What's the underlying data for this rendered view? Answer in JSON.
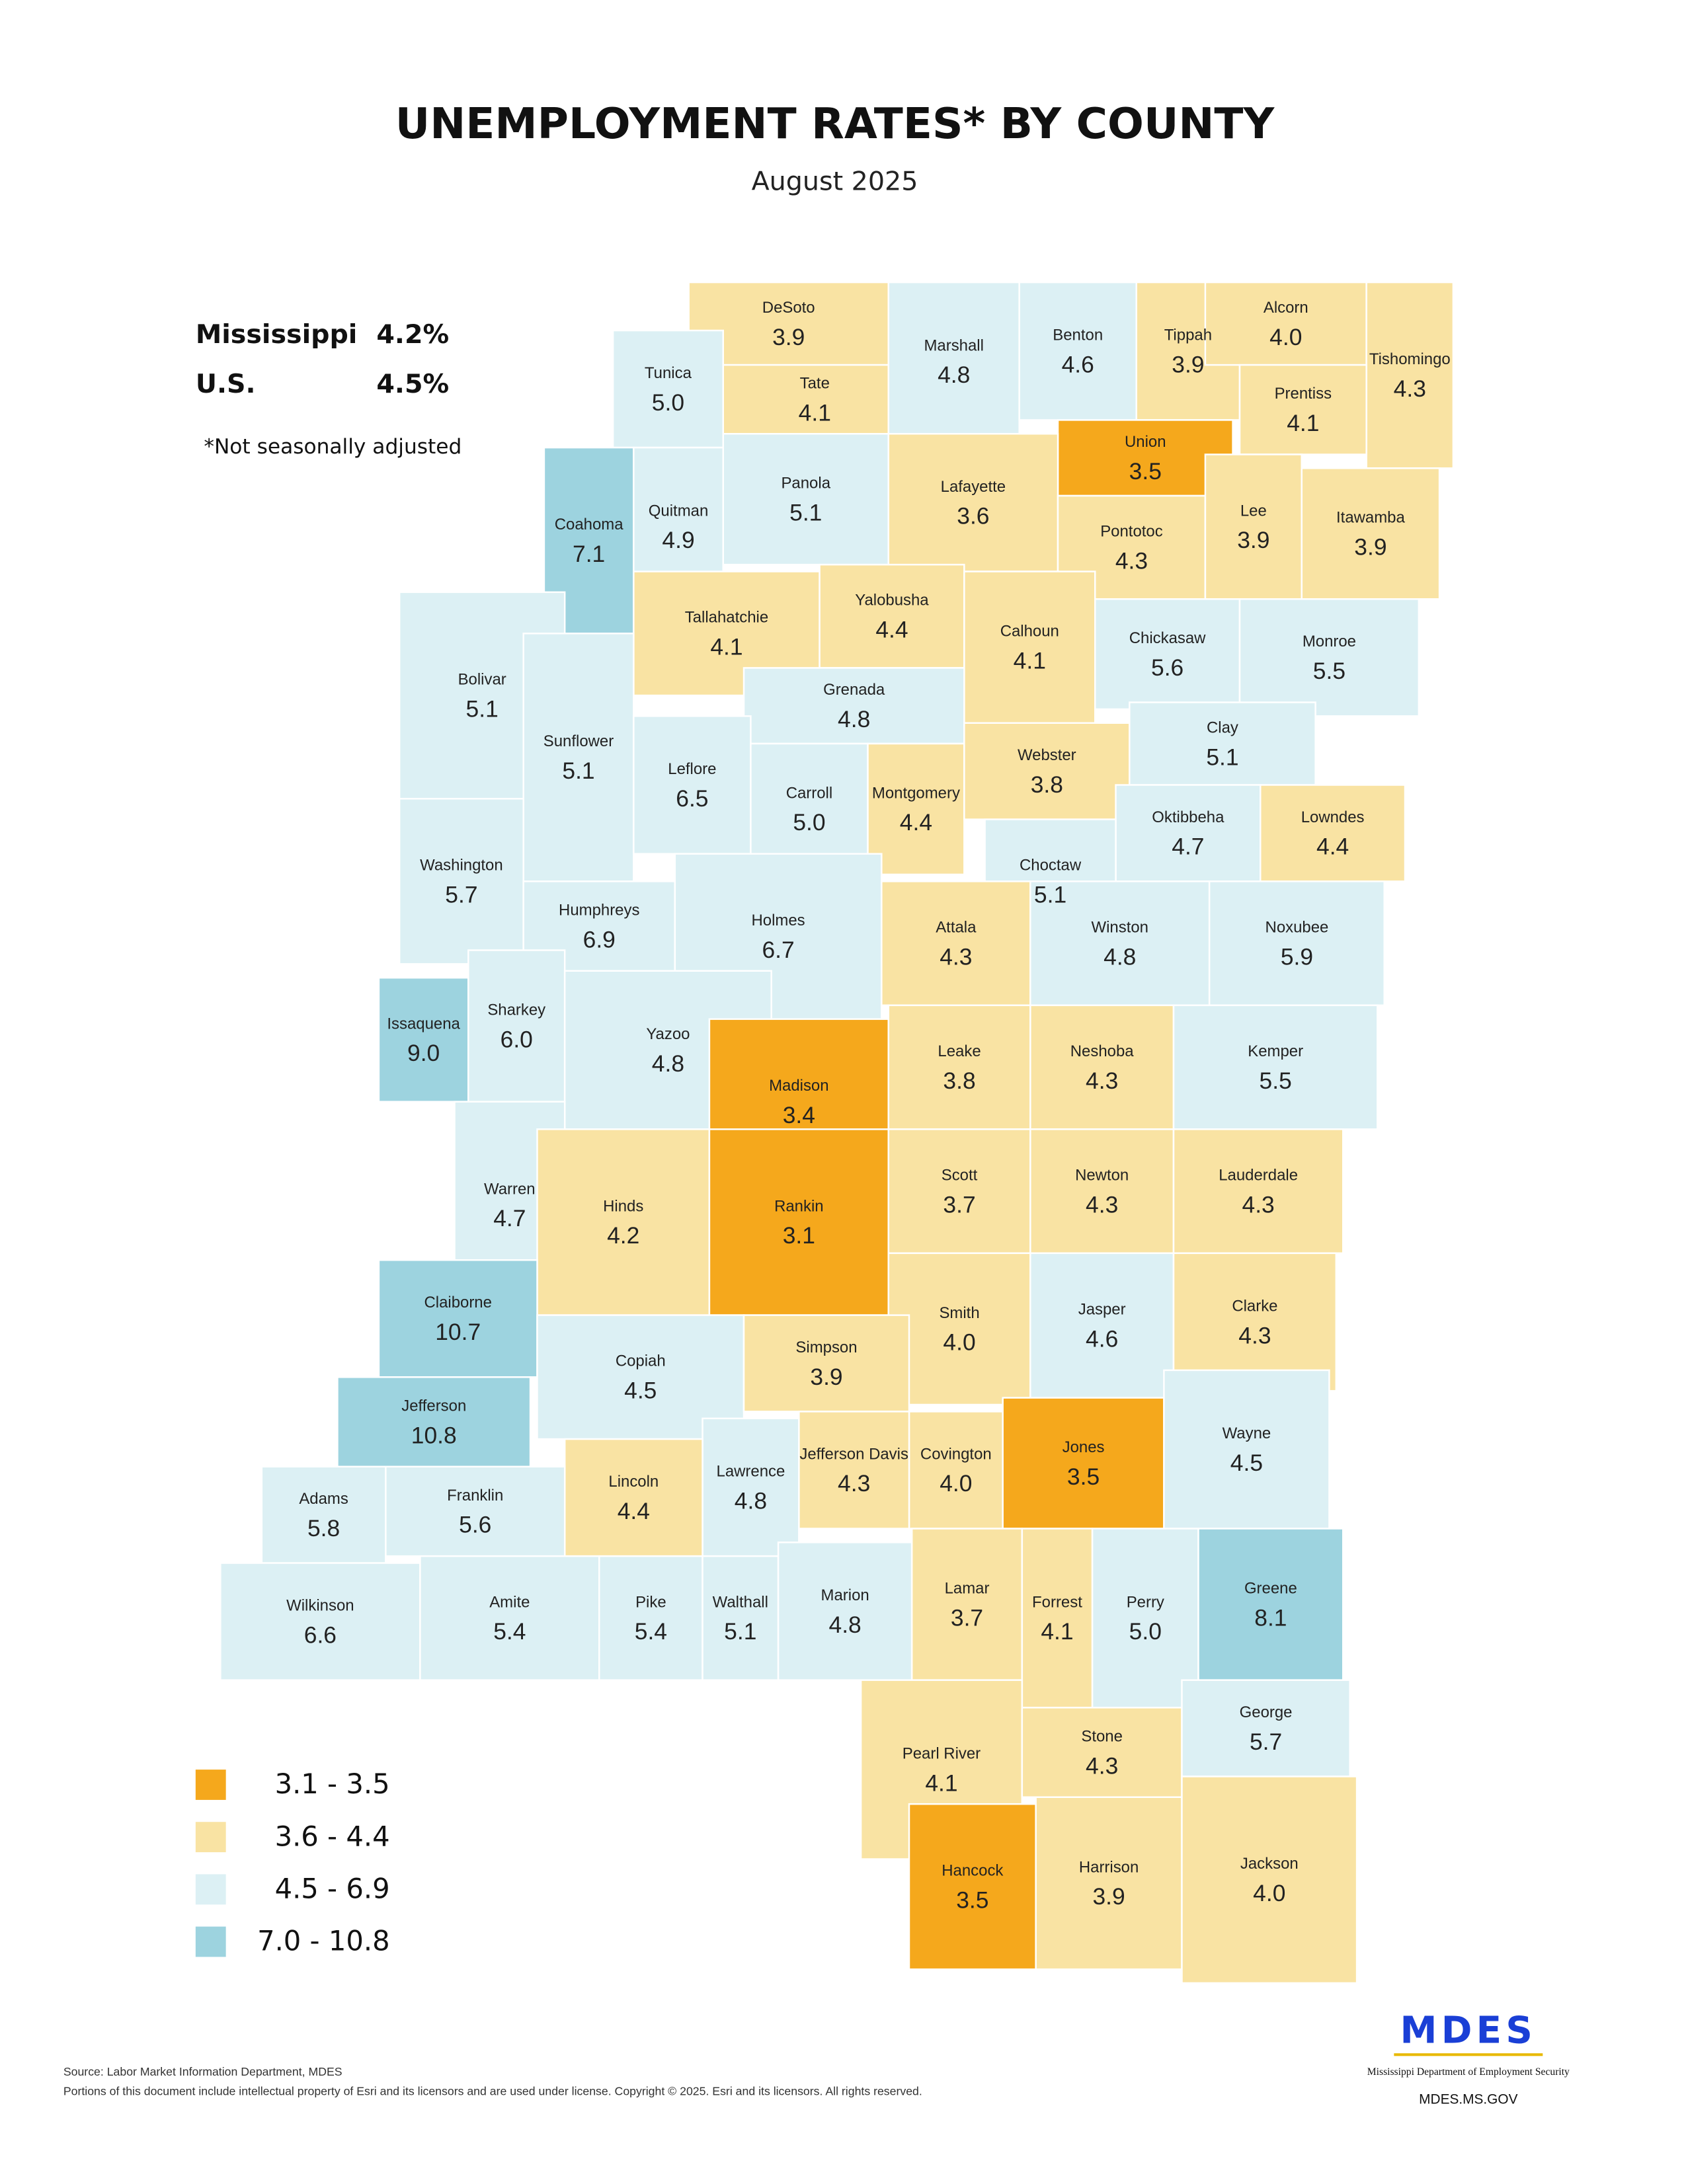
{
  "chart_data": {
    "type": "choropleth",
    "title": "UNEMPLOYMENT RATES* BY COUNTY",
    "subtitle": "August 2025",
    "state_rates": [
      {
        "name": "Mississippi",
        "rate": "4.2%"
      },
      {
        "name": "U.S.",
        "rate": "4.5%"
      }
    ],
    "note": "*Not seasonally adjusted",
    "legend": [
      {
        "label": "3.1 - 3.5",
        "color": "#f5a81c"
      },
      {
        "label": "3.6 - 4.4",
        "color": "#f9e3a3"
      },
      {
        "label": "4.5 - 6.9",
        "color": "#dcf0f4"
      },
      {
        "label": "7.0 - 10.8",
        "color": "#9dd3df"
      }
    ],
    "regions": [
      "DeSoto",
      "Tunica",
      "Tate",
      "Marshall",
      "Benton",
      "Tippah",
      "Alcorn",
      "Tishomingo",
      "Prentiss",
      "Union",
      "Coahoma",
      "Quitman",
      "Panola",
      "Lafayette",
      "Pontotoc",
      "Lee",
      "Itawamba",
      "Bolivar",
      "Tallahatchie",
      "Yalobusha",
      "Calhoun",
      "Chickasaw",
      "Monroe",
      "Grenada",
      "Sunflower",
      "Leflore",
      "Carroll",
      "Montgomery",
      "Webster",
      "Clay",
      "Lowndes",
      "Oktibbeha",
      "Choctaw",
      "Washington",
      "Humphreys",
      "Holmes",
      "Attala",
      "Winston",
      "Noxubee",
      "Issaquena",
      "Sharkey",
      "Yazoo",
      "Madison",
      "Leake",
      "Neshoba",
      "Kemper",
      "Warren",
      "Hinds",
      "Rankin",
      "Scott",
      "Newton",
      "Lauderdale",
      "Claiborne",
      "Smith",
      "Jasper",
      "Clarke",
      "Copiah",
      "Simpson",
      "Jefferson",
      "Covington",
      "Jones",
      "Wayne",
      "Jefferson Davis",
      "Lawrence",
      "Lincoln",
      "Franklin",
      "Adams",
      "Wilkinson",
      "Amite",
      "Pike",
      "Walthall",
      "Marion",
      "Lamar",
      "Forrest",
      "Perry",
      "Greene",
      "Pearl River",
      "Stone",
      "George",
      "Hancock",
      "Harrison",
      "Jackson"
    ],
    "values": [
      3.9,
      5.0,
      4.1,
      4.8,
      4.6,
      3.9,
      4.0,
      4.3,
      4.1,
      3.5,
      7.1,
      4.9,
      5.1,
      3.6,
      4.3,
      3.9,
      3.9,
      5.1,
      4.1,
      4.4,
      4.1,
      5.6,
      5.5,
      4.8,
      5.1,
      6.5,
      5.0,
      4.4,
      3.8,
      5.1,
      4.4,
      4.7,
      5.1,
      5.7,
      6.9,
      6.7,
      4.3,
      4.8,
      5.9,
      9.0,
      6.0,
      4.8,
      3.4,
      3.8,
      4.3,
      5.5,
      4.7,
      4.2,
      3.1,
      3.7,
      4.3,
      4.3,
      10.7,
      4.0,
      4.6,
      4.3,
      4.5,
      3.9,
      10.8,
      4.0,
      3.5,
      4.5,
      4.3,
      4.8,
      4.4,
      5.6,
      5.8,
      6.6,
      5.4,
      5.4,
      5.1,
      4.8,
      3.7,
      4.1,
      5.0,
      8.1,
      4.1,
      4.3,
      5.7,
      3.5,
      3.9,
      4.0
    ],
    "value_labels": [
      "3.9",
      "5.0",
      "4.1",
      "4.8",
      "4.6",
      "3.9",
      "4.0",
      "4.3",
      "4.1",
      "3.5",
      "7.1",
      "4.9",
      "5.1",
      "3.6",
      "4.3",
      "3.9",
      "3.9",
      "5.1",
      "4.1",
      "4.4",
      "4.1",
      "5.6",
      "5.5",
      "4.8",
      "5.1",
      "6.5",
      "5.0",
      "4.4",
      "3.8",
      "5.1",
      "4.4",
      "4.7",
      "5.1",
      "5.7",
      "6.9",
      "6.7",
      "4.3",
      "4.8",
      "5.9",
      "9.0",
      "6.0",
      "4.8",
      "3.4",
      "3.8",
      "4.3",
      "5.5",
      "4.7",
      "4.2",
      "3.1",
      "3.7",
      "4.3",
      "4.3",
      "10.7",
      "4.0",
      "4.6",
      "4.3",
      "4.5",
      "3.9",
      "10.8",
      "4.0",
      "3.5",
      "4.5",
      "4.3",
      "4.8",
      "4.4",
      "5.6",
      "5.8",
      "6.6",
      "5.4",
      "5.4",
      "5.1",
      "4.8",
      "3.7",
      "4.1",
      "5.0",
      "8.1",
      "4.1",
      "4.3",
      "5.7",
      "3.5",
      "3.9",
      "4.0"
    ],
    "source": "Source: Labor Market Information Department, MDES",
    "copyright": "Portions of this document include intellectual property of Esri and its licensors and are used under license. Copyright © 2025.  Esri and its licensors. All rights reserved.",
    "logo": "MDES",
    "agency": "Mississippi Department of Employment Security",
    "website": "MDES.MS.GOV"
  }
}
